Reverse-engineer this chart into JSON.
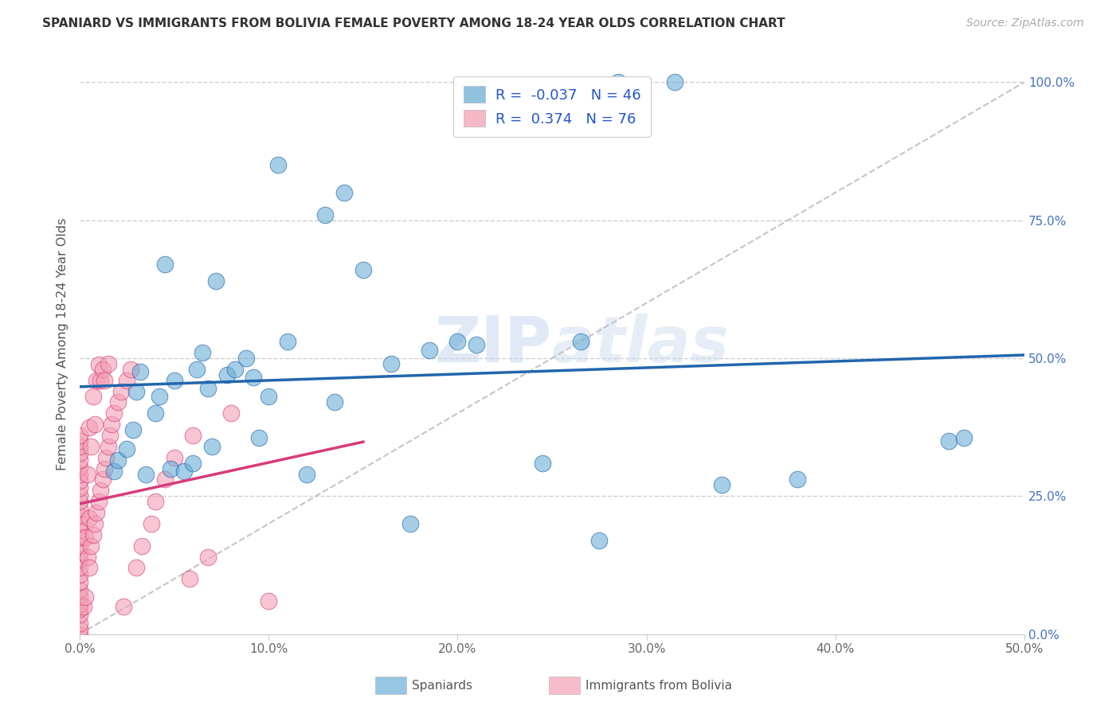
{
  "title": "SPANIARD VS IMMIGRANTS FROM BOLIVIA FEMALE POVERTY AMONG 18-24 YEAR OLDS CORRELATION CHART",
  "source": "Source: ZipAtlas.com",
  "ylabel": "Female Poverty Among 18-24 Year Olds",
  "xlim": [
    0.0,
    0.5
  ],
  "ylim": [
    0.0,
    1.05
  ],
  "spaniard_color": "#6baed6",
  "bolivia_color": "#f4a0b5",
  "spaniard_line_color": "#2166ac",
  "bolivia_line_color": "#d63b7a",
  "spaniard_R": -0.037,
  "spaniard_N": 46,
  "bolivia_R": 0.374,
  "bolivia_N": 76,
  "legend_label_spaniard": "Spaniards",
  "legend_label_bolivia": "Immigrants from Bolivia",
  "watermark": "ZIPatlas",
  "background_color": "#ffffff",
  "grid_color": "#d0d0d0",
  "spaniard_x": [
    0.018,
    0.02,
    0.025,
    0.028,
    0.03,
    0.032,
    0.035,
    0.04,
    0.042,
    0.045,
    0.048,
    0.05,
    0.055,
    0.06,
    0.062,
    0.065,
    0.068,
    0.07,
    0.072,
    0.078,
    0.082,
    0.088,
    0.092,
    0.095,
    0.1,
    0.105,
    0.11,
    0.12,
    0.13,
    0.135,
    0.14,
    0.15,
    0.165,
    0.175,
    0.185,
    0.2,
    0.21,
    0.245,
    0.265,
    0.275,
    0.285,
    0.315,
    0.34,
    0.38,
    0.46,
    0.468
  ],
  "spaniard_y": [
    0.295,
    0.315,
    0.335,
    0.37,
    0.44,
    0.475,
    0.29,
    0.4,
    0.43,
    0.67,
    0.3,
    0.46,
    0.295,
    0.31,
    0.48,
    0.51,
    0.445,
    0.34,
    0.64,
    0.47,
    0.48,
    0.5,
    0.465,
    0.355,
    0.43,
    0.85,
    0.53,
    0.29,
    0.76,
    0.42,
    0.8,
    0.66,
    0.49,
    0.2,
    0.515,
    0.53,
    0.525,
    0.31,
    0.53,
    0.17,
    1.0,
    1.0,
    0.27,
    0.28,
    0.35,
    0.355
  ],
  "bolivia_x": [
    0.0,
    0.0,
    0.0,
    0.0,
    0.0,
    0.0,
    0.0,
    0.0,
    0.0,
    0.0,
    0.0,
    0.0,
    0.0,
    0.0,
    0.0,
    0.0,
    0.0,
    0.0,
    0.0,
    0.0,
    0.0,
    0.0,
    0.0,
    0.0,
    0.0,
    0.0,
    0.0,
    0.0,
    0.0,
    0.0,
    0.002,
    0.003,
    0.003,
    0.004,
    0.004,
    0.005,
    0.005,
    0.005,
    0.006,
    0.006,
    0.007,
    0.007,
    0.008,
    0.008,
    0.009,
    0.009,
    0.01,
    0.01,
    0.011,
    0.011,
    0.012,
    0.012,
    0.013,
    0.013,
    0.014,
    0.015,
    0.015,
    0.016,
    0.017,
    0.018,
    0.02,
    0.022,
    0.023,
    0.025,
    0.027,
    0.03,
    0.033,
    0.038,
    0.04,
    0.045,
    0.05,
    0.058,
    0.06,
    0.068,
    0.08,
    0.1
  ],
  "bolivia_y": [
    0.0,
    0.01,
    0.02,
    0.035,
    0.045,
    0.055,
    0.068,
    0.08,
    0.095,
    0.108,
    0.12,
    0.135,
    0.148,
    0.16,
    0.175,
    0.188,
    0.2,
    0.215,
    0.228,
    0.24,
    0.252,
    0.265,
    0.278,
    0.29,
    0.302,
    0.315,
    0.328,
    0.34,
    0.35,
    0.36,
    0.05,
    0.068,
    0.175,
    0.14,
    0.29,
    0.12,
    0.21,
    0.375,
    0.16,
    0.34,
    0.18,
    0.43,
    0.2,
    0.38,
    0.22,
    0.46,
    0.24,
    0.488,
    0.26,
    0.46,
    0.28,
    0.48,
    0.3,
    0.46,
    0.32,
    0.34,
    0.49,
    0.36,
    0.38,
    0.4,
    0.42,
    0.44,
    0.05,
    0.46,
    0.48,
    0.12,
    0.16,
    0.2,
    0.24,
    0.28,
    0.32,
    0.1,
    0.36,
    0.14,
    0.4,
    0.06
  ]
}
